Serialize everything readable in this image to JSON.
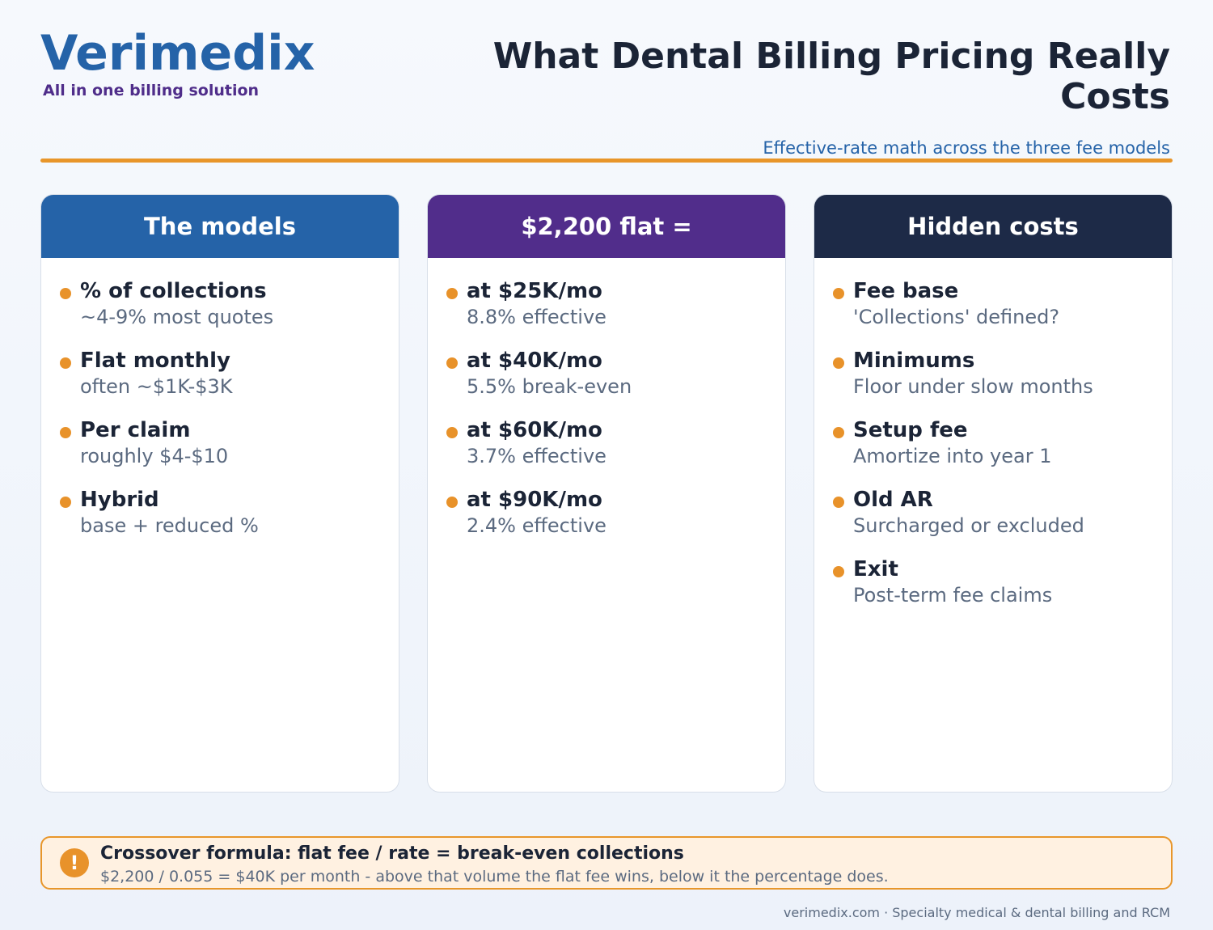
{
  "brand": {
    "name": "Verimedix",
    "tagline": "All in one billing solution"
  },
  "header": {
    "title": "What Dental Billing Pricing Really Costs",
    "subtitle": "Effective-rate math across the three fee models"
  },
  "colors": {
    "brand_blue": "#2563a8",
    "purple": "#512d8b",
    "navy": "#1d2a47",
    "accent_orange": "#e8962a"
  },
  "columns": [
    {
      "heading": "The models",
      "color": "#2563a8",
      "items": [
        {
          "title": "% of collections",
          "sub": "~4-9% most quotes"
        },
        {
          "title": "Flat monthly",
          "sub": "often ~$1K-$3K"
        },
        {
          "title": "Per claim",
          "sub": "roughly $4-$10"
        },
        {
          "title": "Hybrid",
          "sub": "base + reduced %"
        }
      ]
    },
    {
      "heading": "$2,200 flat =",
      "color": "#512d8b",
      "items": [
        {
          "title": "at $25K/mo",
          "sub": "8.8% effective"
        },
        {
          "title": "at $40K/mo",
          "sub": "5.5% break-even"
        },
        {
          "title": "at $60K/mo",
          "sub": "3.7% effective"
        },
        {
          "title": "at $90K/mo",
          "sub": "2.4% effective"
        }
      ]
    },
    {
      "heading": "Hidden costs",
      "color": "#1d2a47",
      "items": [
        {
          "title": "Fee base",
          "sub": "'Collections' defined?"
        },
        {
          "title": "Minimums",
          "sub": "Floor under slow months"
        },
        {
          "title": "Setup fee",
          "sub": "Amortize into year 1"
        },
        {
          "title": "Old AR",
          "sub": "Surcharged or excluded"
        },
        {
          "title": "Exit",
          "sub": "Post-term fee claims"
        }
      ]
    }
  ],
  "callout": {
    "icon": "exclamation-icon",
    "icon_glyph": "!",
    "title": "Crossover formula: flat fee / rate = break-even collections",
    "text": "$2,200 / 0.055 = $40K per month - above that volume the flat fee wins, below it the percentage does."
  },
  "footer": {
    "text": "verimedix.com · Specialty medical & dental billing and RCM"
  }
}
